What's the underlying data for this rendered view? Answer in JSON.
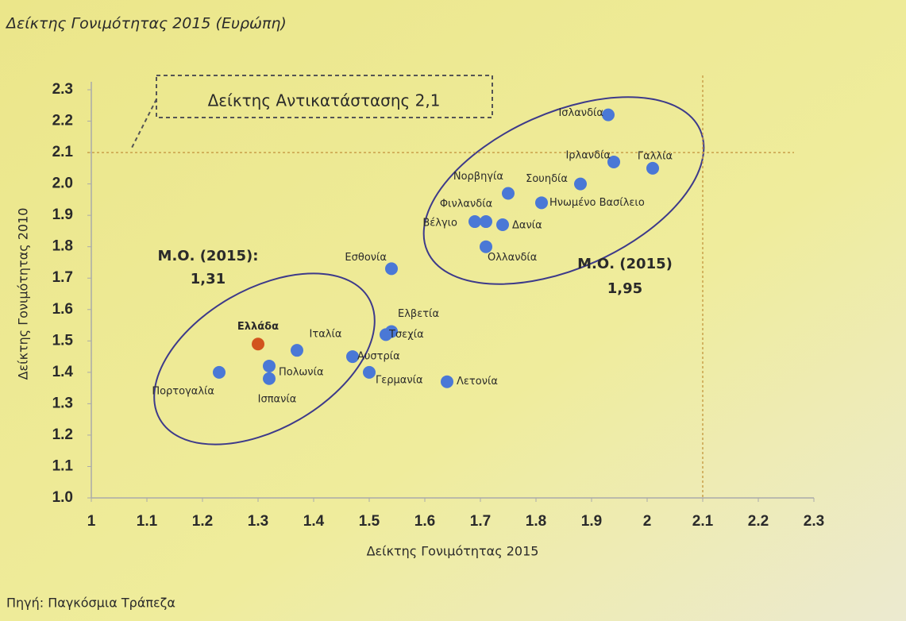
{
  "chart_data": {
    "type": "scatter",
    "title": "Δείκτης Γονιμότητας 2015 (Ευρώπη)",
    "x_label": "Δείκτης Γονιμότητας 2015",
    "y_label": "Δείκτης Γονιμότητας 2010",
    "source": "Πηγή: Παγκόσμια Τράπεζα",
    "xlim": [
      1,
      2.3
    ],
    "ylim": [
      1,
      2.3
    ],
    "xticks": [
      1,
      1.1,
      1.2,
      1.3,
      1.4,
      1.5,
      1.6,
      1.7,
      1.8,
      1.9,
      2,
      2.1,
      2.2,
      2.3
    ],
    "yticks": [
      {
        "value": 1,
        "label": "1.0"
      },
      1.1,
      1.2,
      1.3,
      1.4,
      1.5,
      1.6,
      1.7,
      1.8,
      1.9,
      {
        "value": 2,
        "label": "2.0"
      },
      2.1,
      2.2,
      2.3
    ],
    "reference_x": 2.1,
    "reference_y": 2.1,
    "annotations": {
      "replacement": "Δείκτης Αντικατάστασης 2,1",
      "left_mean_label": "Μ.Ο. (2015):",
      "left_mean_value": "1,31",
      "right_mean_label": "Μ.Ο. (2015)",
      "right_mean_value": "1,95"
    },
    "series": [
      {
        "color": "#4a78d6",
        "labels": [
          "Ισλανδία",
          "Ιρλανδία",
          "Γαλλία",
          "Σουηδία",
          "Νορβηγία",
          "Ηνωμένο Βασίλειο",
          "Βέλγιο",
          "Φινλανδία",
          "Δανία",
          "Ολλανδία",
          "Εσθονία",
          "Ελβετία",
          "Τσεχία",
          "Ελλάδα",
          "Ιταλία",
          "Αυστρία",
          "Πολωνία",
          "Γερμανία",
          "Πορτογαλία",
          "Ισπανία",
          "Λετονία"
        ],
        "x": [
          1.93,
          1.94,
          2.01,
          1.88,
          1.75,
          1.81,
          1.69,
          1.71,
          1.74,
          1.71,
          1.54,
          1.54,
          1.53,
          1.3,
          1.37,
          1.47,
          1.32,
          1.5,
          1.23,
          1.32,
          1.64
        ],
        "values": [
          2.22,
          2.07,
          2.05,
          2.0,
          1.97,
          1.94,
          1.88,
          1.88,
          1.87,
          1.8,
          1.73,
          1.53,
          1.52,
          1.49,
          1.47,
          1.45,
          1.42,
          1.4,
          1.4,
          1.38,
          1.37
        ],
        "colors": [
          "#4a78d6",
          "#4a78d6",
          "#4a78d6",
          "#4a78d6",
          "#4a78d6",
          "#4a78d6",
          "#4a78d6",
          "#4a78d6",
          "#4a78d6",
          "#4a78d6",
          "#4a78d6",
          "#4a78d6",
          "#4a78d6",
          "#d2541e",
          "#4a78d6",
          "#4a78d6",
          "#4a78d6",
          "#4a78d6",
          "#4a78d6",
          "#4a78d6",
          "#4a78d6"
        ]
      }
    ]
  }
}
